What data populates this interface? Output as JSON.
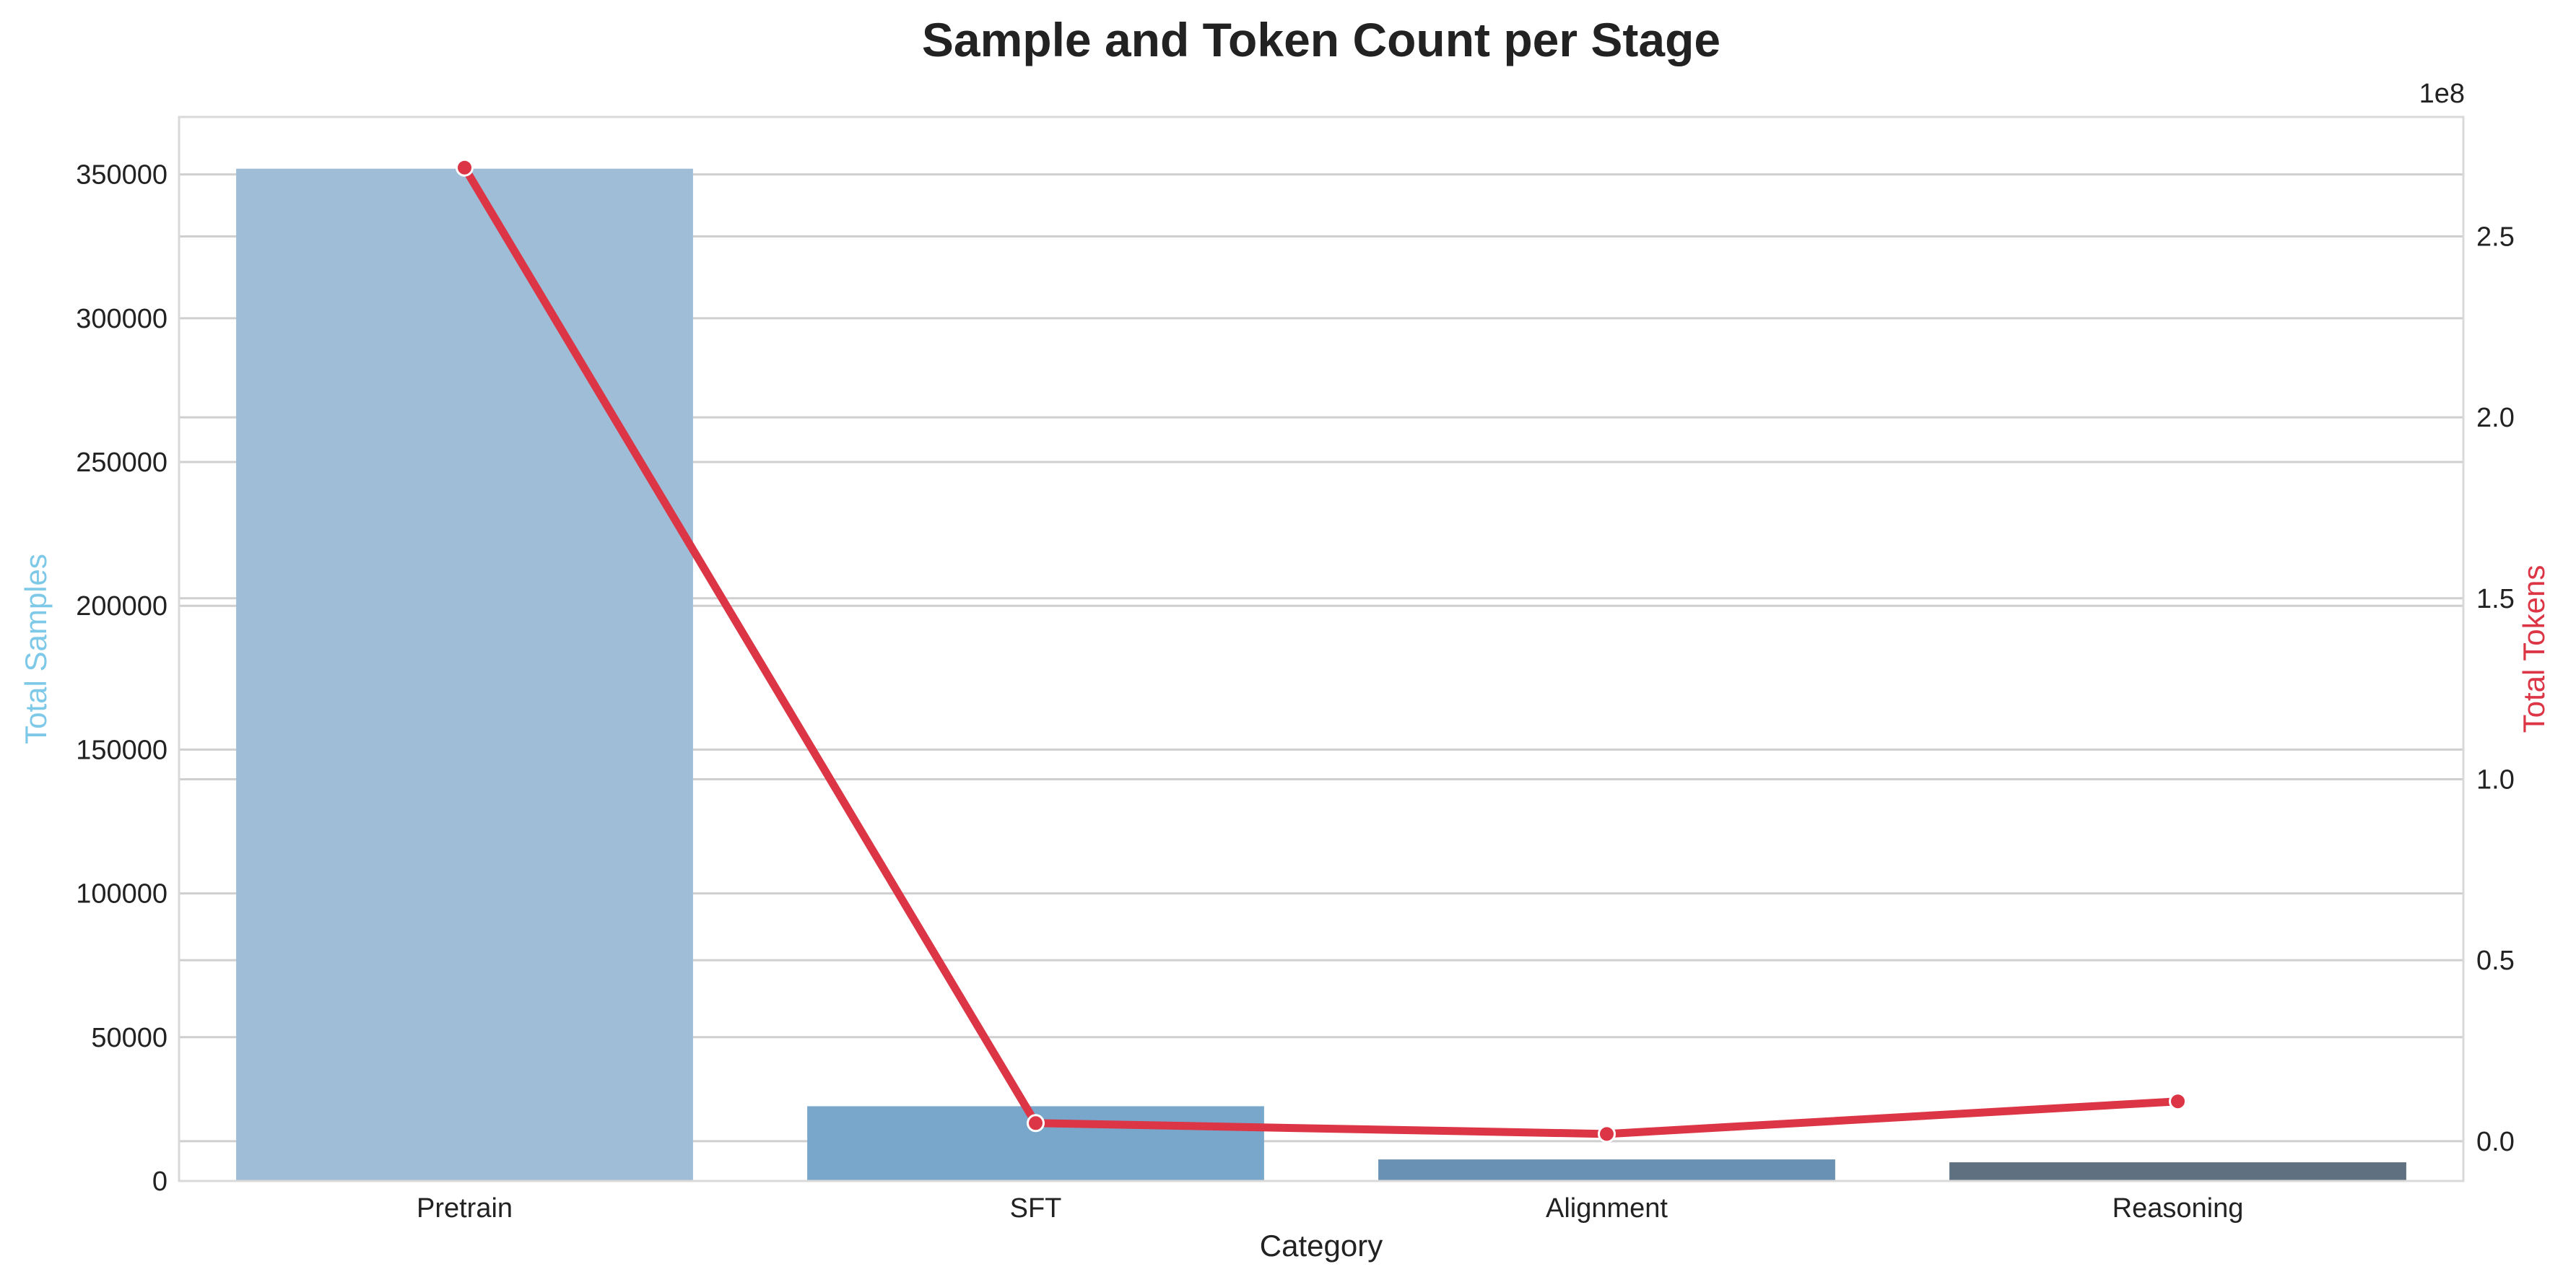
{
  "chart_data": {
    "type": "bar",
    "title": "Sample and Token Count per Stage",
    "xlabel": "Category",
    "categories": [
      "Pretrain",
      "SFT",
      "Alignment",
      "Reasoning"
    ],
    "series": [
      {
        "name": "Total Samples",
        "type": "bar",
        "axis": "left",
        "values": [
          352000,
          26000,
          7500,
          6500
        ],
        "colors": [
          "#9fbdd6",
          "#79a7cb",
          "#6891b3",
          "#5f7180"
        ]
      },
      {
        "name": "Total Tokens",
        "type": "line",
        "axis": "right",
        "values": [
          269000000,
          5000000,
          2000000,
          11000000
        ],
        "color": "#dc3545"
      }
    ],
    "y_left": {
      "label": "Total Samples",
      "label_color": "#7ec8e8",
      "ylim": [
        0,
        370000
      ],
      "ticks": [
        0,
        50000,
        100000,
        150000,
        200000,
        250000,
        300000,
        350000
      ]
    },
    "y_right": {
      "label": "Total Tokens",
      "label_color": "#dc3545",
      "offset_text": "1e8",
      "ylim": [
        -11000000,
        283000000
      ],
      "ticks": [
        0,
        50000000,
        100000000,
        150000000,
        200000000,
        250000000
      ],
      "tick_labels": [
        "0.0",
        "0.5",
        "1.0",
        "1.5",
        "2.0",
        "2.5"
      ]
    },
    "grid": true
  }
}
